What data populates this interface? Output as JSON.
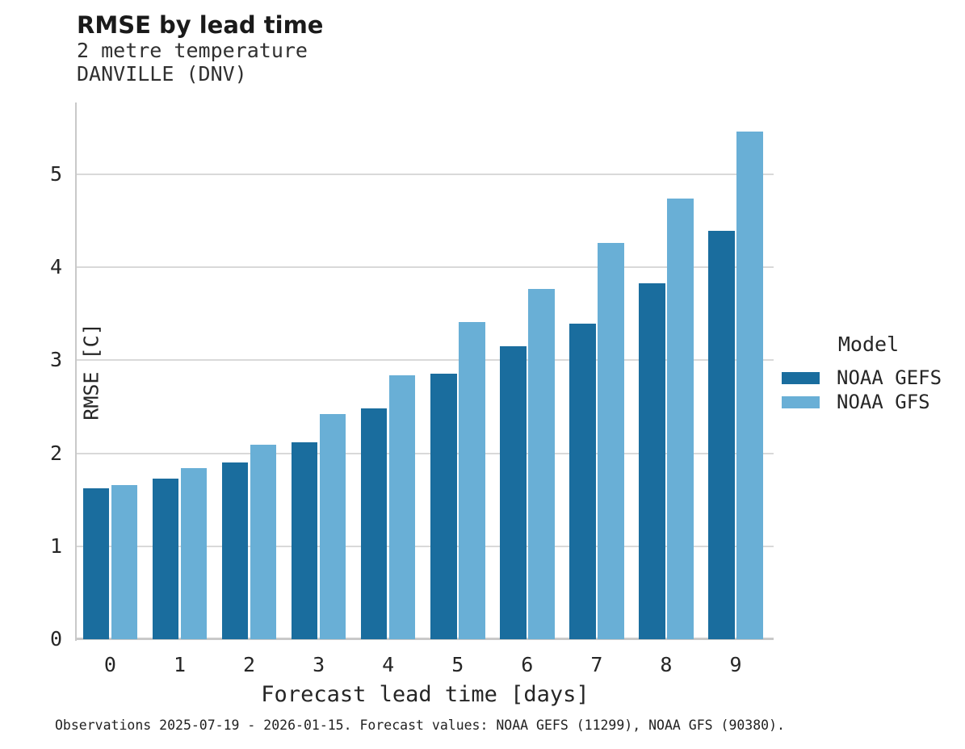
{
  "header": {
    "title": "RMSE by lead time",
    "subtitle_line1": "2 metre temperature",
    "subtitle_line2": "DANVILLE (DNV)"
  },
  "chart_data": {
    "type": "bar",
    "title": "RMSE by lead time",
    "subtitle": "2 metre temperature — DANVILLE (DNV)",
    "categories": [
      "0",
      "1",
      "2",
      "3",
      "4",
      "5",
      "6",
      "7",
      "8",
      "9"
    ],
    "series": [
      {
        "name": "NOAA GEFS",
        "color": "#1A6D9E",
        "values": [
          1.62,
          1.73,
          1.9,
          2.12,
          2.48,
          2.86,
          3.15,
          3.39,
          3.83,
          4.39
        ]
      },
      {
        "name": "NOAA GFS",
        "color": "#69AFD6",
        "values": [
          1.66,
          1.84,
          2.09,
          2.42,
          2.84,
          3.41,
          3.77,
          4.26,
          4.74,
          5.46
        ]
      }
    ],
    "xlabel": "Forecast lead time [days]",
    "ylabel": "RMSE [C]",
    "ylim": [
      0,
      5.77
    ],
    "yticks": [
      0,
      1,
      2,
      3,
      4,
      5
    ],
    "grid": true,
    "legend_title": "Model",
    "legend_position": "right"
  },
  "footer": {
    "caption": "Observations 2025-07-19 - 2026-01-15. Forecast values: NOAA GEFS (11299), NOAA GFS (90380)."
  }
}
